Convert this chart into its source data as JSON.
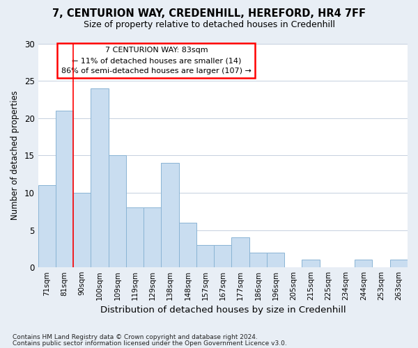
{
  "title1": "7, CENTURION WAY, CREDENHILL, HEREFORD, HR4 7FF",
  "title2": "Size of property relative to detached houses in Credenhill",
  "xlabel": "Distribution of detached houses by size in Credenhill",
  "ylabel": "Number of detached properties",
  "categories": [
    "71sqm",
    "81sqm",
    "90sqm",
    "100sqm",
    "109sqm",
    "119sqm",
    "129sqm",
    "138sqm",
    "148sqm",
    "157sqm",
    "167sqm",
    "177sqm",
    "186sqm",
    "196sqm",
    "205sqm",
    "215sqm",
    "225sqm",
    "234sqm",
    "244sqm",
    "253sqm",
    "263sqm"
  ],
  "values": [
    11,
    21,
    10,
    24,
    15,
    8,
    8,
    14,
    6,
    3,
    3,
    4,
    2,
    2,
    0,
    1,
    0,
    0,
    1,
    0,
    1
  ],
  "bar_color": "#c9ddf0",
  "bar_edge_color": "#8ab4d4",
  "ylim": [
    0,
    30
  ],
  "yticks": [
    0,
    5,
    10,
    15,
    20,
    25,
    30
  ],
  "annotation_box_text": "7 CENTURION WAY: 83sqm\n← 11% of detached houses are smaller (14)\n86% of semi-detached houses are larger (107) →",
  "property_line_x": 1.5,
  "footnote1": "Contains HM Land Registry data © Crown copyright and database right 2024.",
  "footnote2": "Contains public sector information licensed under the Open Government Licence v3.0.",
  "background_color": "#e8eef5",
  "plot_background": "#ffffff"
}
